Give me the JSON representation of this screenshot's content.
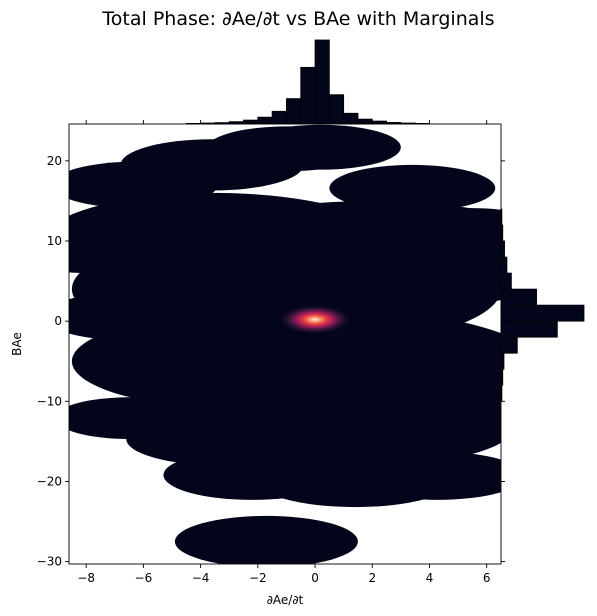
{
  "chart_data": {
    "type": "heatmap",
    "title": "Total Phase: ∂Ae/∂t vs BAe with Marginals",
    "xlabel": "∂Ae/∂t",
    "ylabel": "BAe",
    "xlim": [
      -8.6,
      6.5
    ],
    "ylim": [
      -30.3,
      24.6
    ],
    "x_ticks": [
      -8,
      -6,
      -4,
      -2,
      0,
      2,
      4,
      6
    ],
    "x_tick_labels": [
      "−8",
      "−6",
      "−4",
      "−2",
      "0",
      "2",
      "4",
      "6"
    ],
    "y_ticks": [
      -30,
      -20,
      -10,
      0,
      10,
      20
    ],
    "y_tick_labels": [
      "−30",
      "−20",
      "−10",
      "0",
      "10",
      "20"
    ],
    "colormap": [
      "#03051a",
      "#4c1d4b",
      "#a11a5b",
      "#e83f3f",
      "#f69c73",
      "#faebdd"
    ],
    "background_color": "#03051a",
    "peak": {
      "x": 0.0,
      "y": 0.2
    },
    "density_blobs": [
      {
        "x": -6.3,
        "y": 17.0,
        "r": 2.9
      },
      {
        "x": -3.6,
        "y": 19.5,
        "r": 3.2
      },
      {
        "x": -1.0,
        "y": 21.5,
        "r": 2.8
      },
      {
        "x": 0.2,
        "y": 21.7,
        "r": 2.8
      },
      {
        "x": 3.4,
        "y": 16.6,
        "r": 2.9
      },
      {
        "x": 5.5,
        "y": 11.5,
        "r": 2.6
      },
      {
        "x": 6.4,
        "y": 7.0,
        "r": 2.2
      },
      {
        "x": -7.9,
        "y": 9.0,
        "r": 3.0
      },
      {
        "x": -6.8,
        "y": 10.5,
        "r": 3.0
      },
      {
        "x": -6.5,
        "y": 0.6,
        "r": 3.0
      },
      {
        "x": 4.6,
        "y": -5.0,
        "r": 3.2
      },
      {
        "x": 3.8,
        "y": -11.5,
        "r": 3.2
      },
      {
        "x": -6.5,
        "y": -12.1,
        "r": 2.6
      },
      {
        "x": -3.3,
        "y": -14.7,
        "r": 3.3
      },
      {
        "x": -2.2,
        "y": -19.2,
        "r": 3.1
      },
      {
        "x": 1.4,
        "y": -19.7,
        "r": 3.5
      },
      {
        "x": 4.3,
        "y": -19.3,
        "r": 3.0
      },
      {
        "x": -1.7,
        "y": -27.5,
        "r": 3.2
      },
      {
        "x": -1.0,
        "y": 4.0,
        "r": 7.5
      },
      {
        "x": 0.5,
        "y": -6.0,
        "r": 7.5
      },
      {
        "x": -2.5,
        "y": -5.0,
        "r": 6.0
      },
      {
        "x": 2.0,
        "y": 8.0,
        "r": 7.0
      },
      {
        "x": -3.5,
        "y": 10.0,
        "r": 6.0
      },
      {
        "x": 2.0,
        "y": -13.0,
        "r": 5.0
      }
    ],
    "marginal_x": {
      "bins": [
        {
          "x0": -4.5,
          "x1": -4.0,
          "count": 0.3
        },
        {
          "x0": -4.0,
          "x1": -3.5,
          "count": 0.5
        },
        {
          "x0": -3.5,
          "x1": -3.0,
          "count": 0.7
        },
        {
          "x0": -3.0,
          "x1": -2.5,
          "count": 1.2
        },
        {
          "x0": -2.5,
          "x1": -2.0,
          "count": 2.0
        },
        {
          "x0": -2.0,
          "x1": -1.5,
          "count": 3.5
        },
        {
          "x0": -1.5,
          "x1": -1.0,
          "count": 6.5
        },
        {
          "x0": -1.0,
          "x1": -0.5,
          "count": 13.0
        },
        {
          "x0": -0.5,
          "x1": 0.0,
          "count": 29.0
        },
        {
          "x0": 0.0,
          "x1": 0.5,
          "count": 43.0
        },
        {
          "x0": 0.5,
          "x1": 1.0,
          "count": 15.0
        },
        {
          "x0": 1.0,
          "x1": 1.5,
          "count": 5.5
        },
        {
          "x0": 1.5,
          "x1": 2.0,
          "count": 2.5
        },
        {
          "x0": 2.0,
          "x1": 2.5,
          "count": 1.5
        },
        {
          "x0": 2.5,
          "x1": 3.0,
          "count": 0.8
        },
        {
          "x0": 3.0,
          "x1": 3.5,
          "count": 0.5
        },
        {
          "x0": 3.5,
          "x1": 4.0,
          "count": 0.3
        }
      ],
      "max_count": 43
    },
    "marginal_y": {
      "bins": [
        {
          "y0": -10.0,
          "y1": -8.0,
          "count": 0.3
        },
        {
          "y0": -8.0,
          "y1": -6.0,
          "count": 0.6
        },
        {
          "y0": -6.0,
          "y1": -4.0,
          "count": 1.0
        },
        {
          "y0": -4.0,
          "y1": -2.0,
          "count": 5.5
        },
        {
          "y0": -2.0,
          "y1": 0.0,
          "count": 19.0
        },
        {
          "y0": 0.0,
          "y1": 2.0,
          "count": 28.0
        },
        {
          "y0": 2.0,
          "y1": 4.0,
          "count": 12.0
        },
        {
          "y0": 4.0,
          "y1": 6.0,
          "count": 3.5
        },
        {
          "y0": 6.0,
          "y1": 8.0,
          "count": 2.0
        },
        {
          "y0": 8.0,
          "y1": 10.0,
          "count": 1.2
        },
        {
          "y0": 10.0,
          "y1": 12.0,
          "count": 0.6
        },
        {
          "y0": 12.0,
          "y1": 14.0,
          "count": 0.3
        }
      ],
      "max_count": 28
    }
  }
}
